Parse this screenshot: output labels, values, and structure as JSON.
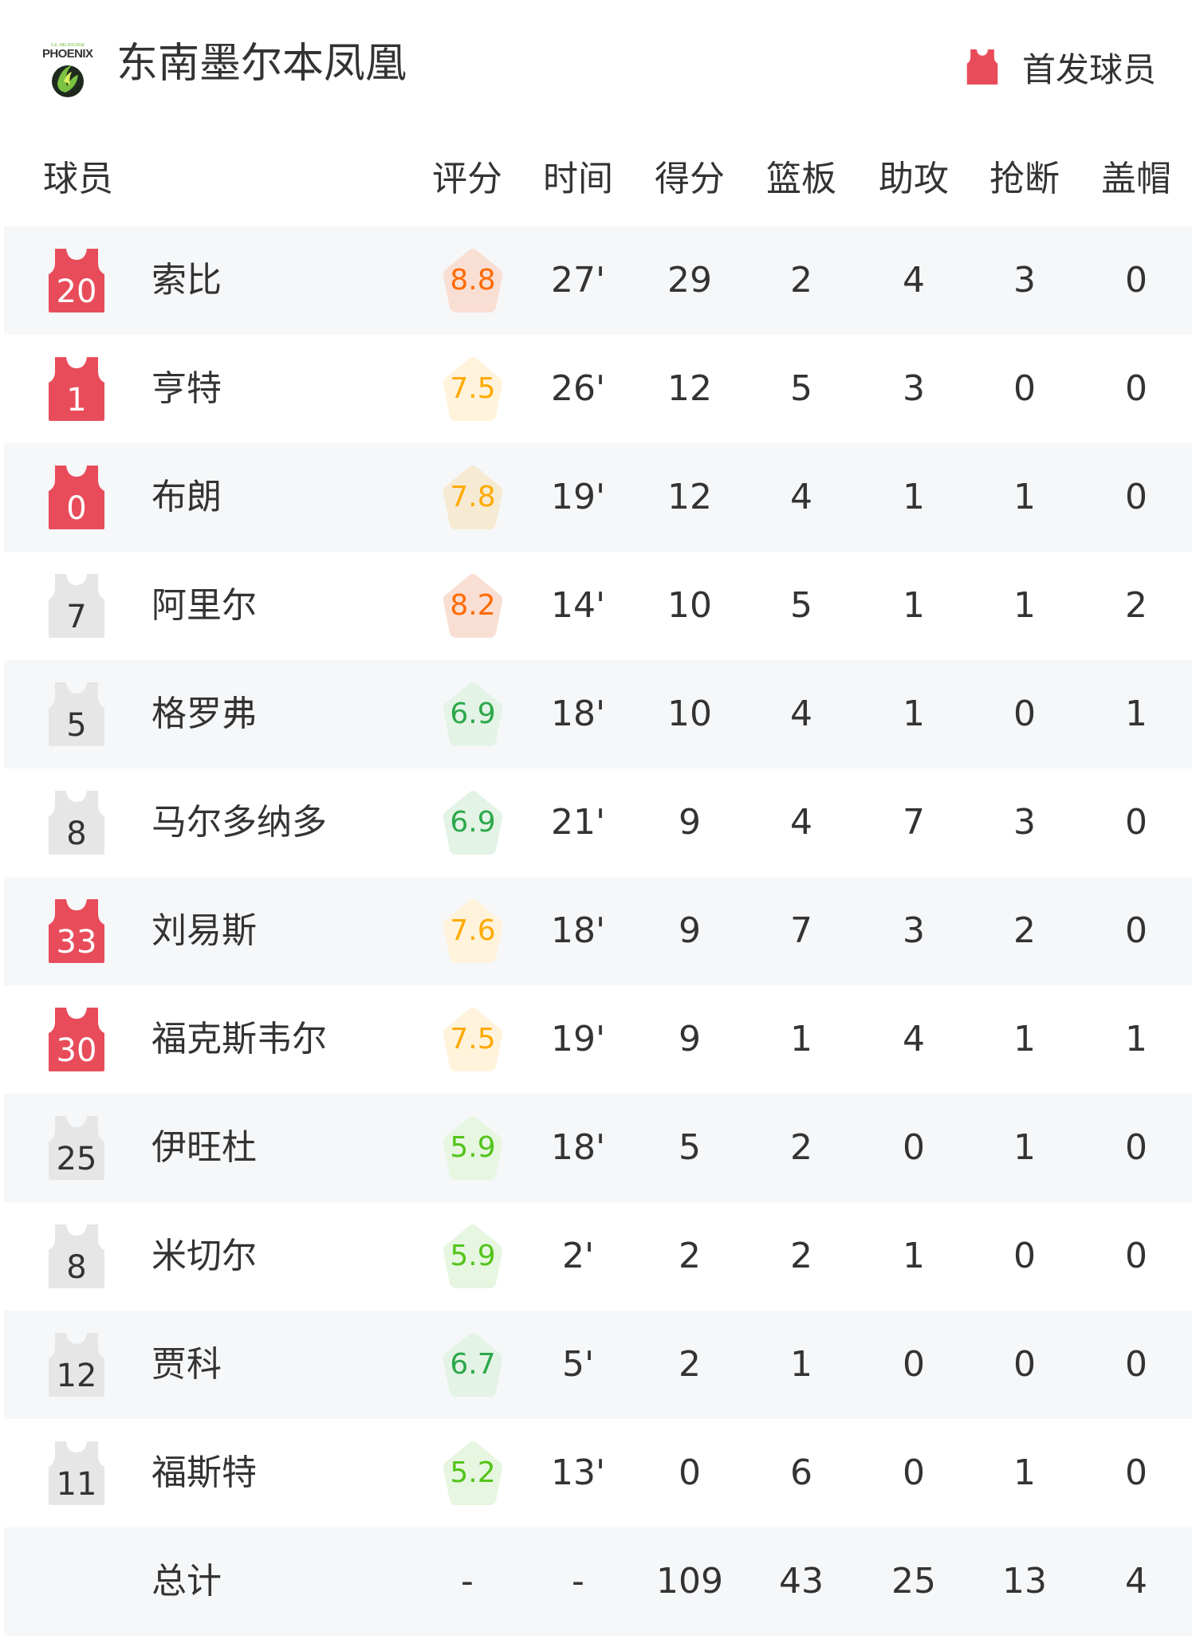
{
  "team": {
    "name": "东南墨尔本凤凰",
    "logo_text": "PHOENIX",
    "logo_subtext": "S.E. MELBOURNE"
  },
  "legend": {
    "label": "首发球员",
    "icon": "jersey-icon",
    "color": "#e84c5a"
  },
  "columns": [
    "球员",
    "评分",
    "时间",
    "得分",
    "篮板",
    "助攻",
    "抢断",
    "盖帽"
  ],
  "colors": {
    "starter": "#e84c5a",
    "bench": "#e6e6e6",
    "row_alt": "#f5f7f9"
  },
  "players": [
    {
      "number": "20",
      "name": "索比",
      "starter": true,
      "rating": "8.8",
      "time": "27'",
      "pts": "29",
      "reb": "2",
      "ast": "4",
      "stl": "3",
      "blk": "0"
    },
    {
      "number": "1",
      "name": "亨特",
      "starter": true,
      "rating": "7.5",
      "time": "26'",
      "pts": "12",
      "reb": "5",
      "ast": "3",
      "stl": "0",
      "blk": "0"
    },
    {
      "number": "0",
      "name": "布朗",
      "starter": true,
      "rating": "7.8",
      "time": "19'",
      "pts": "12",
      "reb": "4",
      "ast": "1",
      "stl": "1",
      "blk": "0"
    },
    {
      "number": "7",
      "name": "阿里尔",
      "starter": false,
      "rating": "8.2",
      "time": "14'",
      "pts": "10",
      "reb": "5",
      "ast": "1",
      "stl": "1",
      "blk": "2"
    },
    {
      "number": "5",
      "name": "格罗弗",
      "starter": false,
      "rating": "6.9",
      "time": "18'",
      "pts": "10",
      "reb": "4",
      "ast": "1",
      "stl": "0",
      "blk": "1"
    },
    {
      "number": "8",
      "name": "马尔多纳多",
      "starter": false,
      "rating": "6.9",
      "time": "21'",
      "pts": "9",
      "reb": "4",
      "ast": "7",
      "stl": "3",
      "blk": "0"
    },
    {
      "number": "33",
      "name": "刘易斯",
      "starter": true,
      "rating": "7.6",
      "time": "18'",
      "pts": "9",
      "reb": "7",
      "ast": "3",
      "stl": "2",
      "blk": "0"
    },
    {
      "number": "30",
      "name": "福克斯韦尔",
      "starter": true,
      "rating": "7.5",
      "time": "19'",
      "pts": "9",
      "reb": "1",
      "ast": "4",
      "stl": "1",
      "blk": "1"
    },
    {
      "number": "25",
      "name": "伊旺杜",
      "starter": false,
      "rating": "5.9",
      "time": "18'",
      "pts": "5",
      "reb": "2",
      "ast": "0",
      "stl": "1",
      "blk": "0"
    },
    {
      "number": "8",
      "name": "米切尔",
      "starter": false,
      "rating": "5.9",
      "time": "2'",
      "pts": "2",
      "reb": "2",
      "ast": "1",
      "stl": "0",
      "blk": "0"
    },
    {
      "number": "12",
      "name": "贾科",
      "starter": false,
      "rating": "6.7",
      "time": "5'",
      "pts": "2",
      "reb": "1",
      "ast": "0",
      "stl": "0",
      "blk": "0"
    },
    {
      "number": "11",
      "name": "福斯特",
      "starter": false,
      "rating": "5.2",
      "time": "13'",
      "pts": "0",
      "reb": "6",
      "ast": "0",
      "stl": "1",
      "blk": "0"
    }
  ],
  "total": {
    "label": "总计",
    "rating": "-",
    "time": "-",
    "pts": "109",
    "reb": "43",
    "ast": "25",
    "stl": "13",
    "blk": "4"
  }
}
